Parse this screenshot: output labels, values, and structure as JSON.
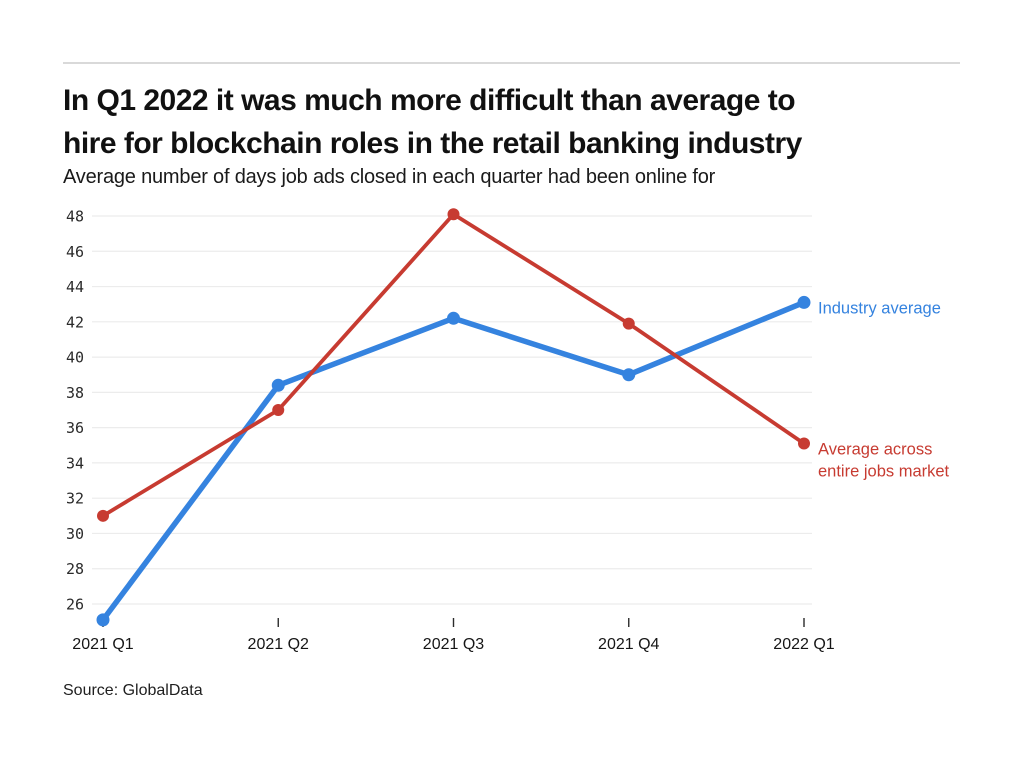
{
  "header": {
    "title_lines": [
      "In Q1 2022 it was much more difficult than average to",
      "hire for blockchain roles in the retail banking industry"
    ],
    "subtitle": "Average number of days job ads closed in each quarter had been online for"
  },
  "source": "Source: GlobalData",
  "chart_data": {
    "type": "line",
    "categories": [
      "2021 Q1",
      "2021 Q2",
      "2021 Q3",
      "2021 Q4",
      "2022 Q1"
    ],
    "series": [
      {
        "name": "Industry average",
        "values": [
          25.1,
          38.4,
          42.2,
          39.0,
          43.1
        ],
        "color": "#3583df",
        "label_lines": [
          "Industry average"
        ],
        "line_width": 5.5,
        "point_radius": 6.5
      },
      {
        "name": "Average across entire jobs market",
        "values": [
          31.0,
          37.0,
          48.1,
          41.9,
          35.1
        ],
        "color": "#c73b31",
        "label_lines": [
          "Average across",
          "entire jobs market"
        ],
        "line_width": 3.8,
        "point_radius": 6
      }
    ],
    "title": "In Q1 2022 it was much more difficult than average to hire for blockchain roles in the retail banking industry",
    "subtitle": "Average number of days job ads closed in each quarter had been online for",
    "xlabel": "",
    "ylabel": "",
    "ylim": [
      26,
      48
    ],
    "y_ticks": [
      26,
      28,
      30,
      32,
      34,
      36,
      38,
      40,
      42,
      44,
      46,
      48
    ],
    "grid": true,
    "gridline_color": "#ececec",
    "tick_color": "#2b2b2b",
    "legend_position": "right-inline"
  }
}
